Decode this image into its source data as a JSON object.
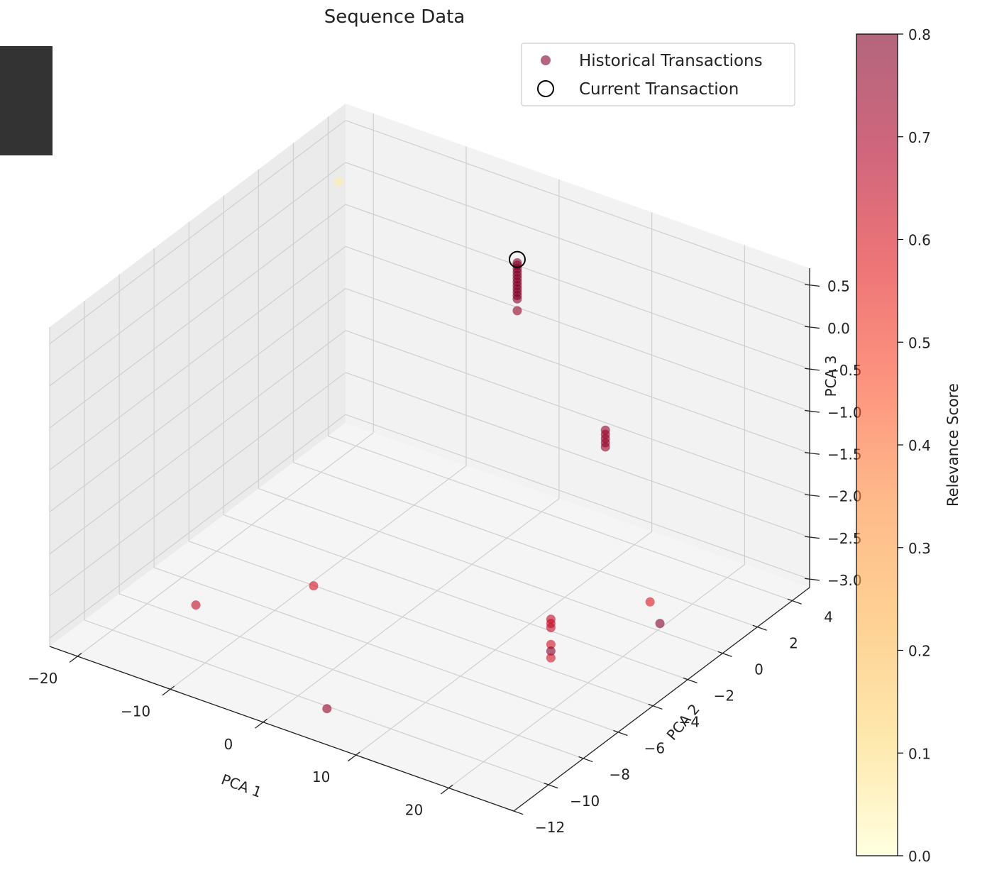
{
  "chart_data": {
    "type": "scatter",
    "title": "Sequence Data",
    "xlabel": "PCA 1",
    "ylabel": "PCA 2",
    "zlabel": "PCA 3",
    "x_ticks": [
      "−20",
      "−10",
      "0",
      "10",
      "20"
    ],
    "y_ticks": [
      "−12",
      "−10",
      "−8",
      "−6",
      "−4",
      "−2",
      "0",
      "2",
      "4"
    ],
    "z_ticks": [
      "−3.0",
      "−2.5",
      "−2.0",
      "−1.5",
      "−1.0",
      "−0.5",
      "0.0",
      "0.5"
    ],
    "xlim": [
      -23,
      27
    ],
    "ylim": [
      -12,
      5
    ],
    "zlim": [
      -3.1,
      0.7
    ],
    "grid": true,
    "legend": {
      "position": "top-right",
      "entries": [
        "Historical Transactions",
        "Current Transaction"
      ]
    },
    "colorbar": {
      "label": "Relevance Score",
      "min": 0.0,
      "max": 0.8,
      "ticks": [
        "0.0",
        "0.1",
        "0.2",
        "0.3",
        "0.4",
        "0.5",
        "0.6",
        "0.7",
        "0.8"
      ],
      "colormap": [
        "#ffffcc",
        "#fed976",
        "#feb24c",
        "#fd8d3c",
        "#fc4e2a",
        "#e31a1c",
        "#b10026",
        "#800026"
      ]
    },
    "series": [
      {
        "name": "Historical Transactions",
        "points": [
          {
            "x": 3.0,
            "y": 1.0,
            "z": 0.45,
            "score": 0.8
          },
          {
            "x": 3.0,
            "y": 1.0,
            "z": 0.42,
            "score": 0.8
          },
          {
            "x": 3.0,
            "y": 1.0,
            "z": 0.38,
            "score": 0.8
          },
          {
            "x": 3.0,
            "y": 1.0,
            "z": 0.34,
            "score": 0.8
          },
          {
            "x": 3.0,
            "y": 1.0,
            "z": 0.3,
            "score": 0.8
          },
          {
            "x": 3.0,
            "y": 1.0,
            "z": 0.26,
            "score": 0.8
          },
          {
            "x": 3.0,
            "y": 1.0,
            "z": 0.22,
            "score": 0.8
          },
          {
            "x": 3.0,
            "y": 1.0,
            "z": 0.18,
            "score": 0.8
          },
          {
            "x": 3.0,
            "y": 1.0,
            "z": 0.14,
            "score": 0.8
          },
          {
            "x": 3.0,
            "y": 1.0,
            "z": 0.1,
            "score": 0.8
          },
          {
            "x": 3.0,
            "y": 1.0,
            "z": 0.06,
            "score": 0.8
          },
          {
            "x": 3.0,
            "y": 1.0,
            "z": 0.02,
            "score": 0.8
          },
          {
            "x": 3.0,
            "y": 1.0,
            "z": -0.12,
            "score": 0.75
          },
          {
            "x": 20.0,
            "y": -3.0,
            "z": -0.25,
            "score": 0.75
          },
          {
            "x": 20.0,
            "y": -3.0,
            "z": -0.3,
            "score": 0.75
          },
          {
            "x": 20.0,
            "y": -3.0,
            "z": -0.35,
            "score": 0.75
          },
          {
            "x": 20.0,
            "y": -3.0,
            "z": -0.4,
            "score": 0.75
          },
          {
            "x": 20.0,
            "y": -3.0,
            "z": -0.45,
            "score": 0.75
          },
          {
            "x": 16.0,
            "y": -4.0,
            "z": -2.5,
            "score": 0.65
          },
          {
            "x": 16.0,
            "y": -4.0,
            "z": -2.55,
            "score": 0.65
          },
          {
            "x": 16.0,
            "y": -4.0,
            "z": -2.6,
            "score": 0.65
          },
          {
            "x": 16.0,
            "y": -4.0,
            "z": -2.8,
            "score": 0.62
          },
          {
            "x": 16.0,
            "y": -4.0,
            "z": -2.88,
            "score": 0.8
          },
          {
            "x": 16.0,
            "y": -4.0,
            "z": -2.96,
            "score": 0.62
          },
          {
            "x": 22.0,
            "y": -1.5,
            "z": -2.45,
            "score": 0.6
          },
          {
            "x": 24.0,
            "y": -2.0,
            "z": -2.55,
            "score": 0.8
          },
          {
            "x": -3.0,
            "y": -7.5,
            "z": -2.3,
            "score": 0.62
          },
          {
            "x": -11.0,
            "y": -10.0,
            "z": -2.45,
            "score": 0.65
          },
          {
            "x": 5.0,
            "y": -11.0,
            "z": -2.9,
            "score": 0.75
          },
          {
            "x": -20.0,
            "y": 3.0,
            "z": 0.2,
            "score": 0.05
          }
        ]
      },
      {
        "name": "Current Transaction",
        "points": [
          {
            "x": 3.0,
            "y": 1.0,
            "z": 0.49
          }
        ]
      }
    ]
  }
}
